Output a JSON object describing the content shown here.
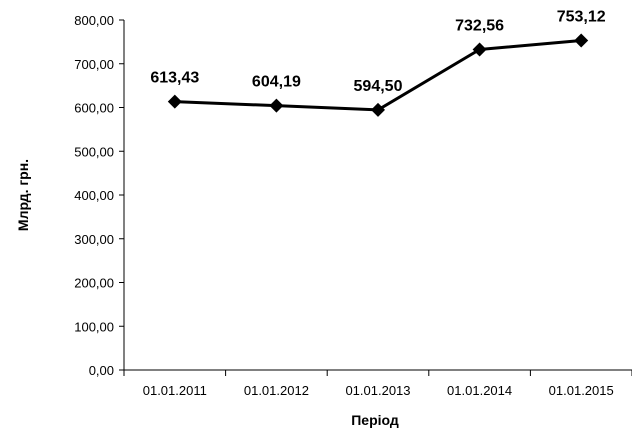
{
  "chart_data": {
    "type": "line",
    "title": "",
    "xlabel": "Період",
    "ylabel": "Млрд. грн.",
    "categories": [
      "01.01.2011",
      "01.01.2012",
      "01.01.2013",
      "01.01.2014",
      "01.01.2015"
    ],
    "series": [
      {
        "values": [
          613.43,
          604.19,
          594.5,
          732.56,
          753.12
        ],
        "value_labels": [
          "613,43",
          "604,19",
          "594,50",
          "732,56",
          "753,12"
        ],
        "color": "#000000",
        "marker": "diamond"
      }
    ],
    "ylim": [
      0,
      800
    ],
    "yticks": [
      0,
      100,
      200,
      300,
      400,
      500,
      600,
      700,
      800
    ],
    "ytick_labels": [
      "0,00",
      "100,00",
      "200,00",
      "300,00",
      "400,00",
      "500,00",
      "600,00",
      "700,00",
      "800,00"
    ],
    "grid": false,
    "legend": "none"
  }
}
